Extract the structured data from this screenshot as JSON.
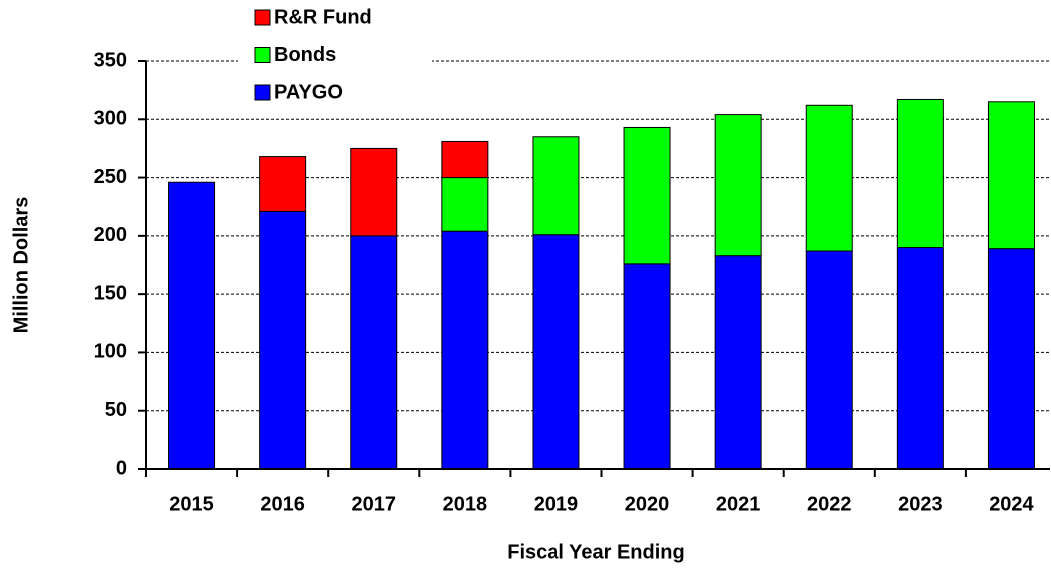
{
  "chart_data": {
    "type": "stacked_bar",
    "x_label": "Fiscal Year Ending",
    "y_label": "Million Dollars",
    "categories": [
      "2015",
      "2016",
      "2017",
      "2018",
      "2019",
      "2020",
      "2021",
      "2022",
      "2023",
      "2024"
    ],
    "series": [
      {
        "name": "PAYGO",
        "color": "#0000ff",
        "values": [
          246,
          221,
          200,
          204,
          201,
          176,
          183,
          187,
          190,
          189
        ]
      },
      {
        "name": "Bonds",
        "color": "#00ff00",
        "values": [
          0,
          0,
          0,
          46,
          84,
          117,
          121,
          125,
          127,
          126
        ]
      },
      {
        "name": "R&R Fund",
        "color": "#ff0000",
        "values": [
          0,
          47,
          75,
          31,
          0,
          0,
          0,
          0,
          0,
          0
        ]
      }
    ],
    "ylim": [
      0,
      350
    ],
    "yticks": [
      0,
      50,
      100,
      150,
      200,
      250,
      300,
      350
    ],
    "grid": true,
    "legend": "top-left"
  }
}
